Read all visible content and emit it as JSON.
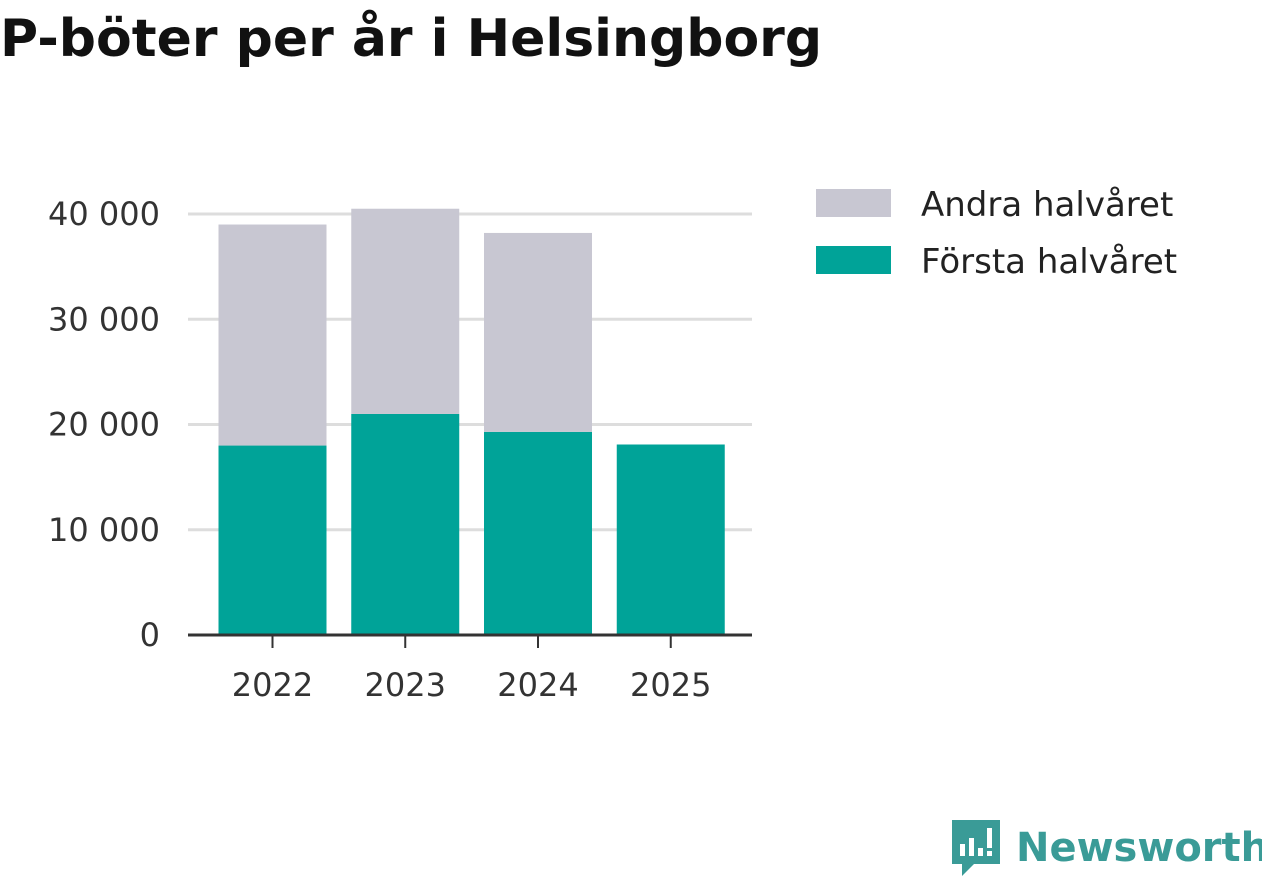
{
  "title": "P-böter per år i Helsingborg",
  "colors": {
    "first_half": "#00A398",
    "second_half": "#C8C7D2",
    "grid": "#DDDDDD",
    "axis": "#333333",
    "brand": "#3A9B97"
  },
  "chart_data": {
    "type": "bar",
    "stacked": true,
    "categories": [
      "2022",
      "2023",
      "2024",
      "2025"
    ],
    "series": [
      {
        "name": "Första halvåret",
        "values": [
          18000,
          21000,
          19300,
          18100
        ]
      },
      {
        "name": "Andra halvåret",
        "values": [
          21000,
          19500,
          18900,
          0
        ]
      }
    ],
    "ylim": [
      0,
      40000
    ],
    "yticks": [
      0,
      10000,
      20000,
      30000,
      40000
    ],
    "ytick_labels": [
      "0",
      "10 000",
      "20 000",
      "30 000",
      "40 000"
    ],
    "xlabel": "",
    "ylabel": "",
    "grid": true,
    "legend": {
      "placement": "top-right",
      "entries": [
        "Andra halvåret",
        "Första halvåret"
      ]
    }
  },
  "brand": {
    "name": "Newsworthy",
    "icon": "newsworthy-logo-icon"
  }
}
